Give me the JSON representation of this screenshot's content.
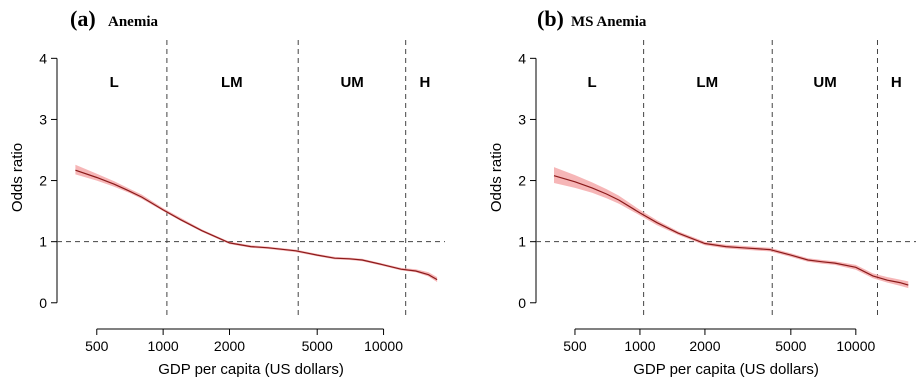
{
  "chart_data": [
    {
      "type": "line",
      "panel_letter": "(a)",
      "title": "Anemia",
      "xlabel": "GDP per capita (US dollars)",
      "ylabel": "Odds ratio",
      "x_scale": "log",
      "xlim": [
        330,
        19000
      ],
      "ylim": [
        -0.2,
        4.3
      ],
      "x_ticks": [
        500,
        1000,
        2000,
        5000,
        10000
      ],
      "y_ticks": [
        0,
        1,
        2,
        3,
        4
      ],
      "reference_line_y": 1,
      "income_cutoffs": [
        1040,
        4100,
        12600
      ],
      "regions": [
        {
          "label": "L",
          "x": 600
        },
        {
          "label": "LM",
          "x": 2050
        },
        {
          "label": "UM",
          "x": 7200
        },
        {
          "label": "H",
          "x": 15400
        }
      ],
      "series": [
        {
          "x": [
            400,
            500,
            600,
            700,
            800,
            1000,
            1200,
            1500,
            2000,
            2500,
            3000,
            4000,
            5000,
            6000,
            7000,
            8000,
            10000,
            12000,
            14000,
            16000,
            17500
          ],
          "y": [
            2.17,
            2.05,
            1.94,
            1.83,
            1.73,
            1.52,
            1.36,
            1.18,
            0.98,
            0.92,
            0.9,
            0.85,
            0.78,
            0.73,
            0.72,
            0.7,
            0.62,
            0.55,
            0.52,
            0.46,
            0.38
          ],
          "lower": [
            2.1,
            2.0,
            1.9,
            1.8,
            1.7,
            1.5,
            1.34,
            1.16,
            0.96,
            0.9,
            0.88,
            0.83,
            0.76,
            0.71,
            0.7,
            0.68,
            0.6,
            0.53,
            0.5,
            0.43,
            0.34
          ],
          "upper": [
            2.26,
            2.11,
            1.99,
            1.87,
            1.77,
            1.55,
            1.39,
            1.2,
            1.0,
            0.94,
            0.92,
            0.87,
            0.8,
            0.75,
            0.74,
            0.72,
            0.64,
            0.57,
            0.55,
            0.5,
            0.42
          ]
        }
      ]
    },
    {
      "type": "line",
      "panel_letter": "(b)",
      "title": "MS Anemia",
      "xlabel": "GDP per capita (US dollars)",
      "ylabel": "Odds ratio",
      "x_scale": "log",
      "xlim": [
        330,
        19000
      ],
      "ylim": [
        -0.2,
        4.3
      ],
      "x_ticks": [
        500,
        1000,
        2000,
        5000,
        10000
      ],
      "y_ticks": [
        0,
        1,
        2,
        3,
        4
      ],
      "reference_line_y": 1,
      "income_cutoffs": [
        1040,
        4100,
        12600
      ],
      "regions": [
        {
          "label": "L",
          "x": 600
        },
        {
          "label": "LM",
          "x": 2050
        },
        {
          "label": "UM",
          "x": 7200
        },
        {
          "label": "H",
          "x": 15400
        }
      ],
      "series": [
        {
          "x": [
            400,
            500,
            600,
            700,
            800,
            1000,
            1200,
            1500,
            2000,
            2500,
            3000,
            4000,
            5000,
            6000,
            7000,
            8000,
            10000,
            12000,
            14000,
            16000,
            17500
          ],
          "y": [
            2.08,
            1.98,
            1.88,
            1.78,
            1.68,
            1.47,
            1.31,
            1.14,
            0.97,
            0.92,
            0.9,
            0.87,
            0.78,
            0.7,
            0.67,
            0.65,
            0.58,
            0.44,
            0.37,
            0.33,
            0.29
          ],
          "lower": [
            1.96,
            1.88,
            1.8,
            1.71,
            1.62,
            1.43,
            1.27,
            1.11,
            0.94,
            0.89,
            0.87,
            0.84,
            0.75,
            0.67,
            0.64,
            0.62,
            0.54,
            0.4,
            0.33,
            0.28,
            0.24
          ],
          "upper": [
            2.22,
            2.09,
            1.97,
            1.86,
            1.75,
            1.52,
            1.35,
            1.17,
            1.0,
            0.95,
            0.93,
            0.9,
            0.81,
            0.73,
            0.7,
            0.68,
            0.62,
            0.48,
            0.42,
            0.38,
            0.35
          ]
        }
      ]
    }
  ]
}
